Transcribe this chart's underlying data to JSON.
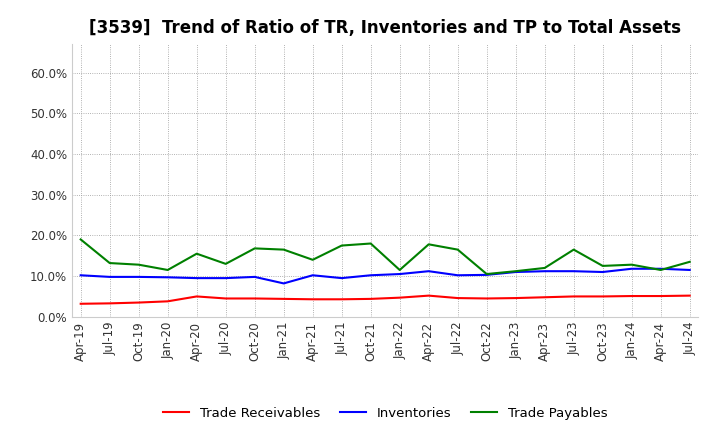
{
  "title": "[3539]  Trend of Ratio of TR, Inventories and TP to Total Assets",
  "x_labels": [
    "Apr-19",
    "Jul-19",
    "Oct-19",
    "Jan-20",
    "Apr-20",
    "Jul-20",
    "Oct-20",
    "Jan-21",
    "Apr-21",
    "Jul-21",
    "Oct-21",
    "Jan-22",
    "Apr-22",
    "Jul-22",
    "Oct-22",
    "Jan-23",
    "Apr-23",
    "Jul-23",
    "Oct-23",
    "Jan-24",
    "Apr-24",
    "Jul-24"
  ],
  "trade_receivables": [
    3.2,
    3.3,
    3.5,
    3.8,
    5.0,
    4.5,
    4.5,
    4.4,
    4.3,
    4.3,
    4.4,
    4.7,
    5.2,
    4.6,
    4.5,
    4.6,
    4.8,
    5.0,
    5.0,
    5.1,
    5.1,
    5.2
  ],
  "inventories": [
    10.2,
    9.8,
    9.8,
    9.7,
    9.5,
    9.5,
    9.8,
    8.2,
    10.2,
    9.5,
    10.2,
    10.5,
    11.2,
    10.2,
    10.3,
    11.0,
    11.2,
    11.2,
    11.0,
    11.8,
    11.8,
    11.5
  ],
  "trade_payables": [
    19.0,
    13.2,
    12.8,
    11.5,
    15.5,
    13.0,
    16.8,
    16.5,
    14.0,
    17.5,
    18.0,
    11.5,
    17.8,
    16.5,
    10.5,
    11.2,
    12.0,
    16.5,
    12.5,
    12.8,
    11.5,
    13.5
  ],
  "tr_color": "#ff0000",
  "inv_color": "#0000ff",
  "tp_color": "#008000",
  "ylim": [
    0,
    67
  ],
  "yticks": [
    0,
    10,
    20,
    30,
    40,
    50,
    60
  ],
  "ytick_labels": [
    "0.0%",
    "10.0%",
    "20.0%",
    "30.0%",
    "40.0%",
    "50.0%",
    "60.0%"
  ],
  "legend_tr": "Trade Receivables",
  "legend_inv": "Inventories",
  "legend_tp": "Trade Payables",
  "background_color": "#ffffff",
  "grid_color": "#999999",
  "title_fontsize": 12,
  "axis_fontsize": 8.5,
  "legend_fontsize": 9.5
}
